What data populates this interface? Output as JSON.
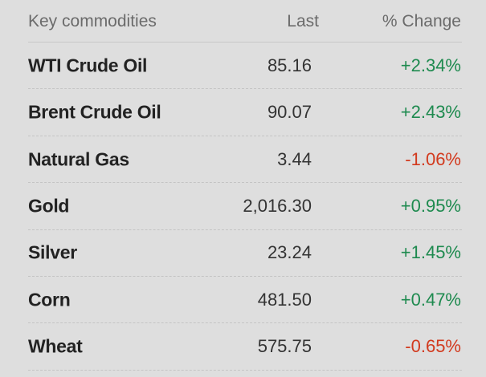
{
  "table": {
    "header": [
      "Key commodities",
      "Last",
      "% Change"
    ],
    "rows": [
      [
        "WTI Crude Oil",
        "85.16",
        "+2.34%"
      ],
      [
        "Brent Crude Oil",
        "90.07",
        "+2.43%"
      ],
      [
        "Natural Gas",
        "3.44",
        "-1.06%"
      ],
      [
        "Gold",
        "2,016.30",
        "+0.95%"
      ],
      [
        "Silver",
        "23.24",
        "+1.45%"
      ],
      [
        "Corn",
        "481.50",
        "+0.47%"
      ],
      [
        "Wheat",
        "575.75",
        "-0.65%"
      ]
    ]
  }
}
